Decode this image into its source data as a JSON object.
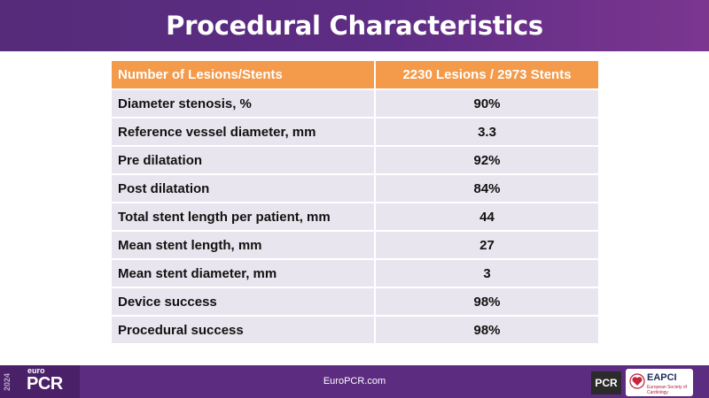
{
  "title": "Procedural Characteristics",
  "table": {
    "header": [
      "Number of Lesions/Stents",
      "2230 Lesions / 2973 Stents"
    ],
    "rows": [
      [
        "Diameter stenosis, %",
        "90%"
      ],
      [
        "Reference vessel diameter, mm",
        "3.3"
      ],
      [
        "Pre dilatation",
        "92%"
      ],
      [
        "Post dilatation",
        "84%"
      ],
      [
        "Total stent length per patient, mm",
        "44"
      ],
      [
        "Mean stent length, mm",
        "27"
      ],
      [
        "Mean stent diameter, mm",
        "3"
      ],
      [
        "Device success",
        "98%"
      ],
      [
        "Procedural success",
        "98%"
      ]
    ]
  },
  "footer": {
    "year": "2024",
    "brand_small": "euro",
    "brand_big": "PCR",
    "website": "EuroPCR.com",
    "pcr_badge": "PCR",
    "eapci_label": "EAPCI",
    "eapci_sub": "European Society of Cardiology"
  },
  "colors": {
    "header_purple": "#5e2d85",
    "table_header_orange": "#f39a4b",
    "row_background": "#e9e5ee",
    "footer_purple": "#5b2c80"
  },
  "icons": [
    "eapci-heart-icon"
  ]
}
